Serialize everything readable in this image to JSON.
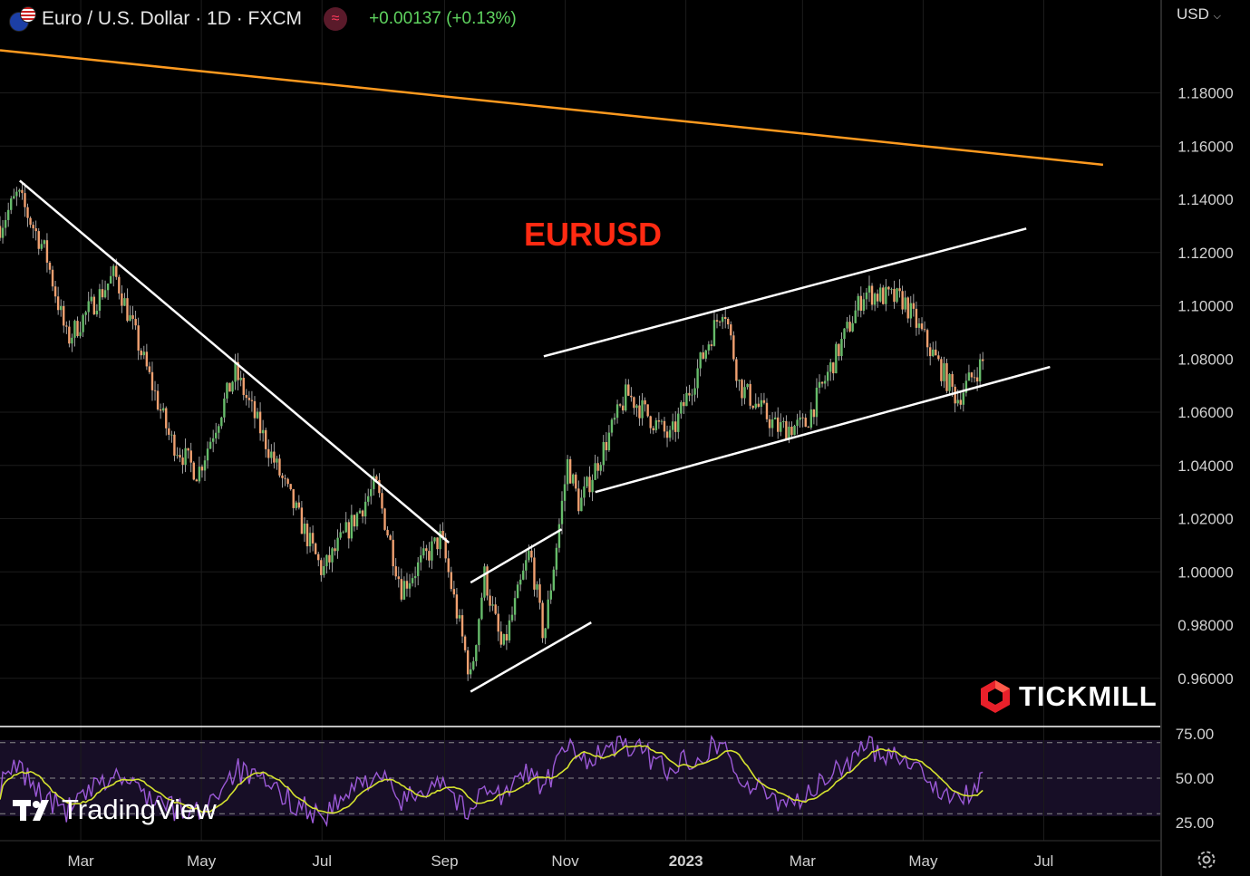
{
  "header": {
    "symbol_title": "Euro / U.S. Dollar · 1D · FXCM",
    "change": "+0.00137 (+0.13%)",
    "currency": "USD"
  },
  "annotation": {
    "title": "EURUSD",
    "title_color": "#ff2a12"
  },
  "branding": {
    "broker_logo": "TICKMILL",
    "platform_logo": "TradingView"
  },
  "icons": {
    "flag": "eu-us-flag-icon",
    "indicator": "indicator-wave-icon",
    "chevron": "chevron-down-icon",
    "settings": "gear-icon"
  },
  "colors": {
    "up_candle": "#66bb6a",
    "down_candle": "#f0a070",
    "moving_average": "#ff9a1f",
    "trendlines": "#ffffff",
    "rsi": "#9b59d6",
    "rsi_ma": "#d4e12f"
  },
  "chart_data": [
    {
      "type": "candlestick",
      "symbol": "EURUSD",
      "timeframe": "1D",
      "y_ticks": [
        "1.18000",
        "1.16000",
        "1.14000",
        "1.12000",
        "1.10000",
        "1.08000",
        "1.06000",
        "1.04000",
        "1.02000",
        "1.00000",
        "0.98000",
        "0.96000"
      ],
      "x_ticks": [
        "Mar",
        "May",
        "Jul",
        "Sep",
        "Nov",
        "2023",
        "Mar",
        "May",
        "Jul"
      ],
      "ylim": [
        0.947,
        1.204
      ],
      "price_path": [
        {
          "date": "2022-02-01",
          "close": 1.13
        },
        {
          "date": "2022-02-10",
          "close": 1.142
        },
        {
          "date": "2022-02-24",
          "close": 1.12
        },
        {
          "date": "2022-03-07",
          "close": 1.087
        },
        {
          "date": "2022-03-31",
          "close": 1.112
        },
        {
          "date": "2022-04-28",
          "close": 1.05
        },
        {
          "date": "2022-05-12",
          "close": 1.037
        },
        {
          "date": "2022-05-31",
          "close": 1.075
        },
        {
          "date": "2022-07-14",
          "close": 1.0
        },
        {
          "date": "2022-08-10",
          "close": 1.033
        },
        {
          "date": "2022-08-23",
          "close": 0.994
        },
        {
          "date": "2022-09-12",
          "close": 1.013
        },
        {
          "date": "2022-09-27",
          "close": 0.96
        },
        {
          "date": "2022-10-04",
          "close": 0.999
        },
        {
          "date": "2022-10-13",
          "close": 0.97
        },
        {
          "date": "2022-10-27",
          "close": 1.008
        },
        {
          "date": "2022-11-03",
          "close": 0.975
        },
        {
          "date": "2022-11-15",
          "close": 1.041
        },
        {
          "date": "2022-11-21",
          "close": 1.025
        },
        {
          "date": "2022-12-15",
          "close": 1.067
        },
        {
          "date": "2023-01-06",
          "close": 1.05
        },
        {
          "date": "2023-02-02",
          "close": 1.101
        },
        {
          "date": "2023-02-10",
          "close": 1.07
        },
        {
          "date": "2023-03-01",
          "close": 1.054
        },
        {
          "date": "2023-03-15",
          "close": 1.055
        },
        {
          "date": "2023-04-14",
          "close": 1.105
        },
        {
          "date": "2023-05-04",
          "close": 1.102
        },
        {
          "date": "2023-05-31",
          "close": 1.065
        },
        {
          "date": "2023-06-14",
          "close": 1.08
        }
      ],
      "moving_average": [
        {
          "date": "2022-02-01",
          "value": 1.196
        },
        {
          "date": "2023-07-31",
          "value": 1.153
        }
      ],
      "trendlines": [
        {
          "name": "descending resistance",
          "points": [
            {
              "date": "2022-02-11",
              "price": 1.147
            },
            {
              "date": "2022-09-16",
              "price": 1.011
            }
          ]
        },
        {
          "name": "bear flag upper",
          "points": [
            {
              "date": "2022-09-27",
              "price": 0.996
            },
            {
              "date": "2022-11-12",
              "price": 1.016
            }
          ]
        },
        {
          "name": "bear flag lower",
          "points": [
            {
              "date": "2022-09-27",
              "price": 0.955
            },
            {
              "date": "2022-11-27",
              "price": 0.981
            }
          ]
        },
        {
          "name": "channel upper",
          "points": [
            {
              "date": "2022-11-03",
              "price": 1.081
            },
            {
              "date": "2023-07-05",
              "price": 1.129
            }
          ]
        },
        {
          "name": "channel lower",
          "points": [
            {
              "date": "2022-11-29",
              "price": 1.03
            },
            {
              "date": "2023-07-17",
              "price": 1.077
            }
          ]
        }
      ]
    },
    {
      "type": "line",
      "indicator": "RSI",
      "y_ticks": [
        "75.00",
        "50.00",
        "25.00"
      ],
      "levels": [
        70,
        50,
        30
      ],
      "ylim": [
        23,
        77
      ],
      "rsi_path": [
        {
          "date": "2022-02-01",
          "value": 45
        },
        {
          "date": "2022-02-10",
          "value": 57
        },
        {
          "date": "2022-02-24",
          "value": 38
        },
        {
          "date": "2022-03-07",
          "value": 32
        },
        {
          "date": "2022-03-31",
          "value": 52
        },
        {
          "date": "2022-04-28",
          "value": 33
        },
        {
          "date": "2022-05-12",
          "value": 30
        },
        {
          "date": "2022-05-31",
          "value": 55
        },
        {
          "date": "2022-07-14",
          "value": 28
        },
        {
          "date": "2022-08-10",
          "value": 54
        },
        {
          "date": "2022-08-23",
          "value": 36
        },
        {
          "date": "2022-09-12",
          "value": 51
        },
        {
          "date": "2022-09-27",
          "value": 27
        },
        {
          "date": "2022-10-04",
          "value": 49
        },
        {
          "date": "2022-10-13",
          "value": 39
        },
        {
          "date": "2022-10-27",
          "value": 55
        },
        {
          "date": "2022-11-03",
          "value": 44
        },
        {
          "date": "2022-11-15",
          "value": 68
        },
        {
          "date": "2022-11-21",
          "value": 60
        },
        {
          "date": "2022-12-15",
          "value": 69
        },
        {
          "date": "2023-01-06",
          "value": 55
        },
        {
          "date": "2023-02-02",
          "value": 71
        },
        {
          "date": "2023-02-10",
          "value": 48
        },
        {
          "date": "2023-03-01",
          "value": 38
        },
        {
          "date": "2023-03-15",
          "value": 39
        },
        {
          "date": "2023-04-14",
          "value": 67
        },
        {
          "date": "2023-05-04",
          "value": 63
        },
        {
          "date": "2023-05-31",
          "value": 35
        },
        {
          "date": "2023-06-14",
          "value": 52
        }
      ]
    }
  ]
}
